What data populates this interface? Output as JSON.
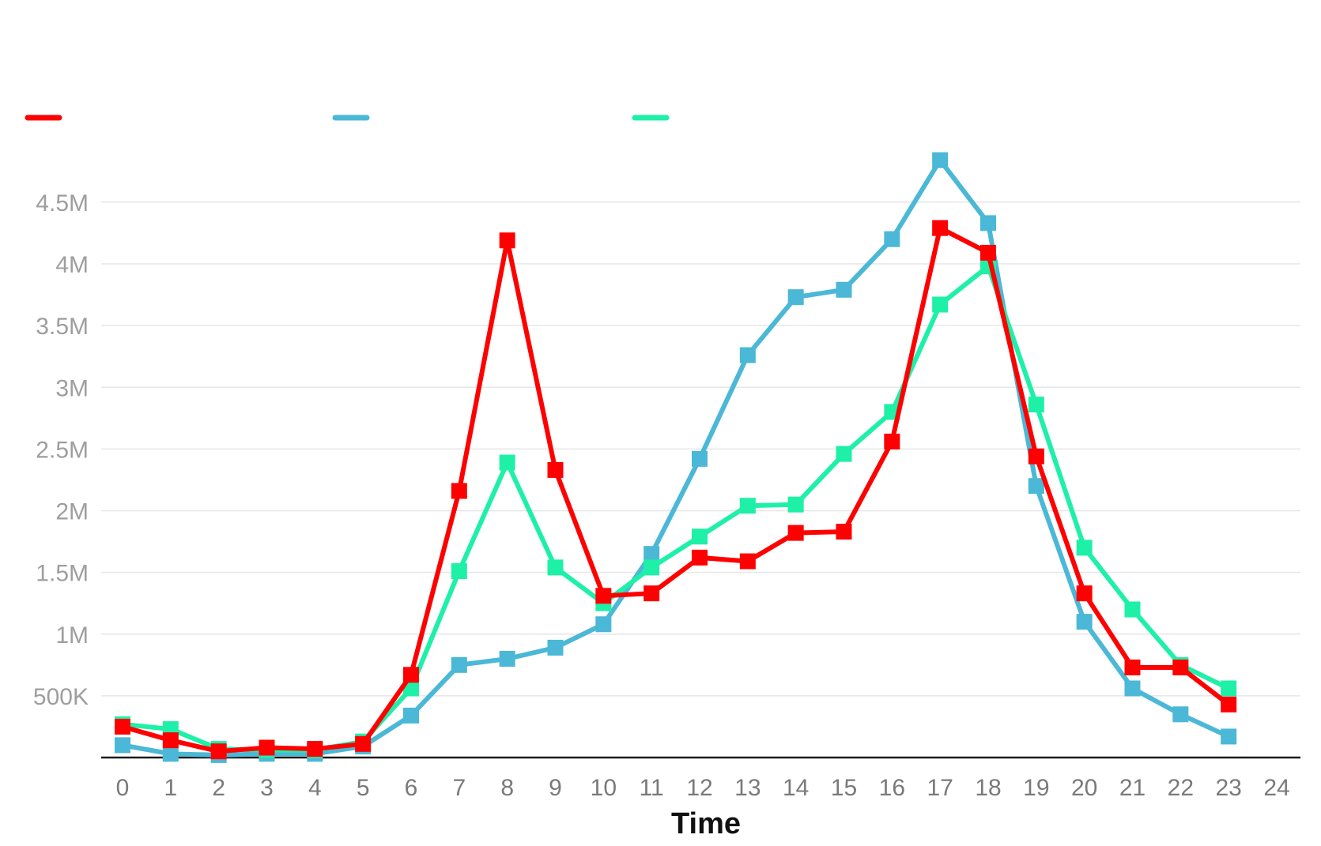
{
  "chart_data": {
    "type": "line",
    "title": "",
    "xlabel": "Time",
    "ylabel": "",
    "x": [
      0,
      1,
      2,
      3,
      4,
      5,
      6,
      7,
      8,
      9,
      10,
      11,
      12,
      13,
      14,
      15,
      16,
      17,
      18,
      19,
      20,
      21,
      22,
      23
    ],
    "xticks": [
      "0",
      "1",
      "2",
      "3",
      "4",
      "5",
      "6",
      "7",
      "8",
      "9",
      "10",
      "11",
      "12",
      "13",
      "14",
      "15",
      "16",
      "17",
      "18",
      "19",
      "20",
      "21",
      "22",
      "23",
      "24"
    ],
    "xlim": [
      0,
      24
    ],
    "ylim": [
      0,
      4800000
    ],
    "yticks": [
      {
        "value": 500000,
        "label": "500K"
      },
      {
        "value": 1000000,
        "label": "1M"
      },
      {
        "value": 1500000,
        "label": "1.5M"
      },
      {
        "value": 2000000,
        "label": "2M"
      },
      {
        "value": 2500000,
        "label": "2.5M"
      },
      {
        "value": 3000000,
        "label": "3M"
      },
      {
        "value": 3500000,
        "label": "3.5M"
      },
      {
        "value": 4000000,
        "label": "4M"
      },
      {
        "value": 4500000,
        "label": "4.5M"
      }
    ],
    "grid": true,
    "legend_position": "top-left",
    "marker": "square",
    "series": [
      {
        "color": "#4ab8d6",
        "values": [
          100000,
          30000,
          20000,
          30000,
          30000,
          90000,
          340000,
          750000,
          800000,
          890000,
          1080000,
          1650000,
          2420000,
          3260000,
          3730000,
          3790000,
          4200000,
          4840000,
          4330000,
          2200000,
          1100000,
          560000,
          350000,
          170000
        ]
      },
      {
        "color": "#1ef0a8",
        "values": [
          270000,
          230000,
          70000,
          60000,
          60000,
          130000,
          560000,
          1510000,
          2390000,
          1540000,
          1250000,
          1540000,
          1790000,
          2040000,
          2050000,
          2460000,
          2800000,
          3670000,
          3980000,
          2860000,
          1700000,
          1200000,
          750000,
          560000
        ]
      },
      {
        "color": "#ff0000",
        "values": [
          250000,
          140000,
          50000,
          80000,
          70000,
          110000,
          670000,
          2160000,
          4190000,
          2330000,
          1310000,
          1330000,
          1620000,
          1590000,
          1820000,
          1830000,
          2560000,
          4290000,
          4090000,
          2440000,
          1330000,
          730000,
          730000,
          430000
        ]
      }
    ],
    "legend": [
      {
        "color": "#ff0000"
      },
      {
        "color": "#4ab8d6"
      },
      {
        "color": "#1ef0a8"
      }
    ]
  }
}
